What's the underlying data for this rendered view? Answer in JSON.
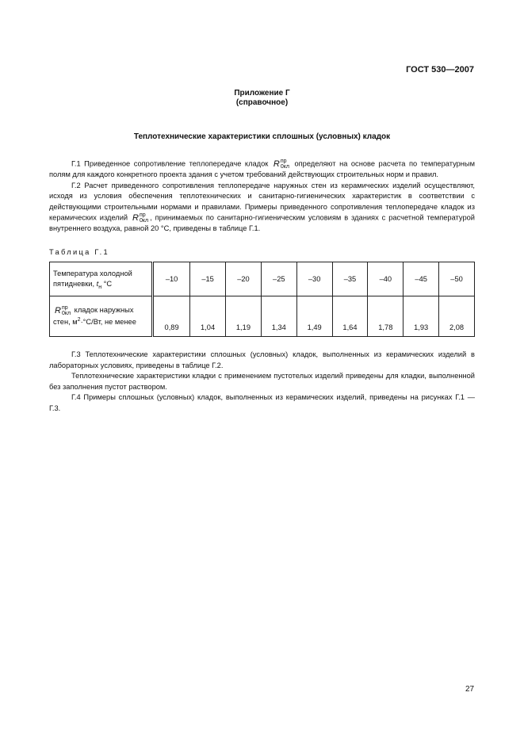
{
  "header": {
    "standard": "ГОСТ 530—2007"
  },
  "appendix": {
    "title": "Приложение Г",
    "subtitle": "(справочное)"
  },
  "section_title": "Теплотехнические характеристики сплошных (условных) кладок",
  "symbol": {
    "base": "R",
    "sub": "0кл",
    "sup": "пр"
  },
  "paragraphs": {
    "g1_a": "Г.1 Приведенное сопротивление теплопередаче кладок ",
    "g1_b": " определяют на основе расчета по температурным полям для каждого конкретного проекта здания с учетом требований действующих строительных норм и правил.",
    "g2_a": "Г.2 Расчет приведенного сопротивления теплопередаче наружных стен из керамических изделий осуществляют, исходя из условия обеспечения теплотехнических и санитарно-гигиенических характеристик в соответствии с действующими строительными нормами и правилами. Примеры приведенного сопротивления теплопередаче кладок из керамических изделий ",
    "g2_b": ", принимаемых по санитарно-гигиеническим условиям в зданиях с расчетной температурой внутреннего воздуха, равной 20 °С, приведены в таблице Г.1.",
    "g3": "Г.3 Теплотехнические характеристики сплошных (условных) кладок, выполненных из керамических изделий в лабораторных условиях, приведены в таблице Г.2.",
    "g3b": "Теплотехнические характеристики кладки с применением пустотелых изделий приведены для кладки, выполненной без заполнения пустот раствором.",
    "g4": "Г.4 Примеры сплошных (условных) кладок, выполненных из керамических изделий, приведены на рисунках Г.1 — Г.3."
  },
  "table": {
    "caption": "Таблица Г.1",
    "row1_label_a": "Температура холодной пятидневки, ",
    "row1_label_t": "t",
    "row1_label_tsub": "н",
    "row1_label_b": " °С",
    "row2_label_a": " кладок наружных стен, м",
    "row2_label_sup": "2",
    "row2_label_b": "·°С/Вт, не менее",
    "temperatures": [
      "–10",
      "–15",
      "–20",
      "–25",
      "–30",
      "–35",
      "–40",
      "–45",
      "–50"
    ],
    "resistances": [
      "0,89",
      "1,04",
      "1,19",
      "1,34",
      "1,49",
      "1,64",
      "1,78",
      "1,93",
      "2,08"
    ]
  },
  "page_number": "27"
}
